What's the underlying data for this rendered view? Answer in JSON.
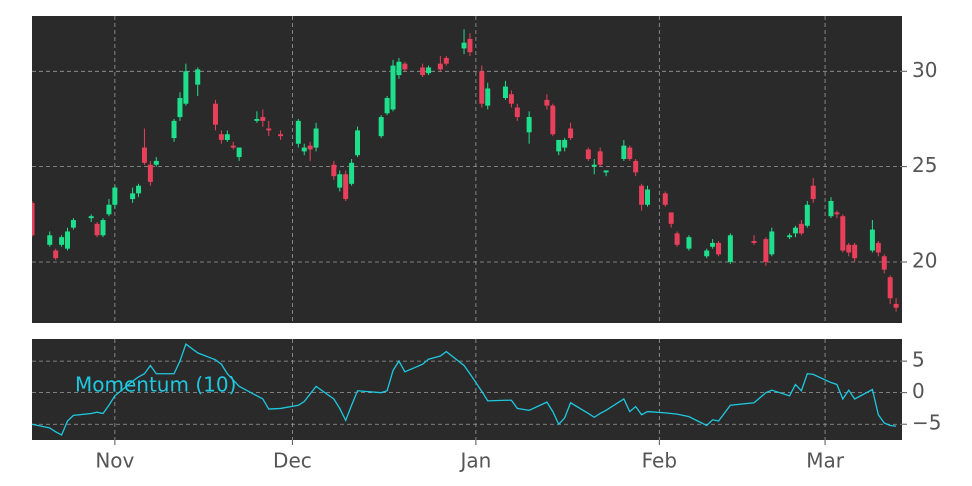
{
  "chart_data": [
    {
      "type": "candlestick",
      "x": [
        0,
        3,
        4,
        5,
        6,
        7,
        10,
        11,
        12,
        13,
        14,
        17,
        18,
        19,
        20,
        21,
        24,
        25,
        26,
        28,
        31,
        32,
        33,
        34,
        35,
        38,
        39,
        40,
        42,
        45,
        46,
        47,
        48,
        51,
        52,
        53,
        54,
        55,
        59,
        60,
        61,
        62,
        63,
        66,
        67,
        69,
        70,
        73,
        74,
        76,
        77,
        80,
        81,
        82,
        84,
        87,
        88,
        89,
        90,
        91,
        94,
        95,
        96,
        97,
        100,
        101,
        102,
        103,
        104,
        107,
        108,
        109,
        111,
        114,
        115,
        116,
        118,
        122,
        124,
        125,
        128,
        129,
        130,
        131,
        132,
        135,
        136,
        137,
        138,
        139,
        142,
        143,
        144,
        145,
        146
      ],
      "open": [
        23.1,
        20.9,
        20.6,
        20.9,
        20.7,
        21.8,
        22.3,
        22.0,
        21.4,
        22.5,
        23.0,
        23.3,
        23.6,
        26.0,
        25.1,
        25.1,
        26.5,
        27.6,
        28.3,
        29.3,
        28.3,
        26.7,
        26.4,
        26.1,
        25.5,
        27.4,
        27.6,
        27.0,
        26.7,
        26.2,
        25.8,
        26.1,
        26.0,
        25.1,
        23.9,
        24.6,
        24.1,
        25.6,
        26.6,
        27.8,
        28.0,
        29.8,
        30.4,
        30.2,
        29.9,
        30.4,
        30.7,
        31.2,
        31.7,
        30.0,
        28.2,
        28.6,
        28.8,
        28.1,
        26.8,
        28.5,
        28.2,
        25.8,
        26.0,
        27.0,
        25.9,
        25.0,
        25.8,
        24.7,
        25.4,
        26.0,
        25.3,
        24.0,
        23.0,
        23.6,
        22.6,
        21.5,
        20.7,
        20.3,
        20.8,
        21.0,
        20.0,
        21.1,
        21.2,
        20.4,
        21.3,
        21.5,
        22.0,
        21.9,
        24.0,
        22.4,
        22.6,
        22.4,
        20.9,
        20.9,
        20.6,
        21.0,
        20.3,
        19.2,
        17.8
      ],
      "high": [
        23.2,
        21.6,
        20.7,
        21.4,
        21.8,
        22.3,
        22.5,
        22.1,
        22.3,
        23.3,
        24.0,
        23.9,
        24.1,
        27.0,
        25.3,
        25.5,
        27.5,
        28.9,
        30.4,
        30.2,
        28.5,
        26.9,
        26.9,
        26.3,
        26.0,
        27.9,
        28.0,
        27.4,
        26.9,
        27.5,
        26.2,
        26.3,
        27.3,
        25.3,
        24.8,
        24.8,
        25.4,
        27.1,
        27.7,
        28.7,
        30.6,
        30.7,
        30.5,
        30.4,
        30.3,
        30.8,
        30.8,
        32.2,
        32.0,
        30.3,
        29.4,
        29.5,
        29.0,
        28.3,
        27.9,
        28.8,
        28.3,
        26.4,
        26.5,
        27.3,
        26.0,
        25.4,
        26.0,
        24.8,
        26.4,
        26.1,
        25.4,
        24.1,
        24.0,
        23.7,
        22.6,
        21.6,
        21.4,
        20.7,
        21.2,
        21.1,
        21.5,
        21.4,
        21.3,
        21.8,
        21.5,
        21.9,
        22.2,
        23.2,
        24.4,
        23.4,
        22.7,
        22.5,
        21.0,
        21.0,
        22.2,
        21.1,
        20.4,
        19.3,
        18.1
      ],
      "low": [
        21.3,
        20.8,
        20.1,
        20.8,
        20.6,
        21.7,
        22.1,
        21.3,
        21.3,
        22.4,
        22.8,
        23.1,
        23.4,
        25.1,
        24.0,
        25.0,
        26.3,
        27.4,
        28.2,
        28.7,
        26.9,
        26.2,
        26.3,
        25.9,
        25.3,
        27.3,
        27.1,
        26.6,
        26.4,
        26.0,
        25.6,
        25.3,
        25.8,
        24.3,
        23.7,
        23.2,
        24.0,
        25.5,
        26.5,
        27.7,
        27.9,
        29.6,
        30.0,
        29.7,
        29.8,
        30.0,
        30.3,
        30.9,
        30.8,
        28.1,
        28.0,
        28.5,
        28.1,
        27.4,
        26.2,
        28.0,
        26.6,
        25.6,
        25.8,
        26.4,
        25.3,
        24.6,
        25.0,
        24.5,
        25.3,
        25.3,
        24.5,
        22.7,
        22.9,
        22.9,
        21.8,
        20.8,
        20.6,
        20.2,
        20.7,
        20.3,
        19.9,
        20.9,
        19.8,
        20.3,
        21.2,
        21.3,
        21.4,
        21.8,
        23.1,
        22.3,
        22.3,
        20.5,
        20.3,
        20.0,
        20.5,
        20.3,
        19.4,
        17.8,
        17.4
      ],
      "close": [
        21.4,
        21.4,
        20.2,
        21.3,
        21.6,
        22.2,
        22.4,
        21.4,
        22.2,
        23.0,
        23.9,
        23.6,
        24.0,
        25.2,
        24.2,
        25.3,
        27.4,
        28.6,
        30.0,
        30.1,
        27.2,
        26.4,
        26.7,
        26.0,
        26.0,
        27.5,
        27.4,
        26.9,
        26.6,
        27.4,
        26.0,
        25.9,
        27.0,
        24.5,
        24.6,
        23.3,
        25.2,
        26.9,
        27.6,
        28.6,
        30.3,
        30.5,
        30.1,
        29.8,
        30.2,
        30.1,
        30.4,
        31.5,
        31.0,
        28.3,
        29.1,
        29.2,
        28.3,
        27.6,
        27.6,
        28.2,
        26.7,
        26.4,
        26.4,
        26.5,
        25.4,
        25.1,
        25.1,
        24.8,
        26.1,
        25.4,
        24.7,
        23.0,
        23.8,
        23.0,
        22.0,
        20.9,
        21.3,
        20.6,
        21.0,
        20.4,
        21.4,
        21.0,
        20.0,
        21.6,
        21.4,
        21.8,
        21.5,
        23.0,
        23.3,
        23.2,
        22.5,
        20.6,
        20.5,
        20.2,
        21.7,
        20.5,
        19.6,
        18.1,
        17.6
      ],
      "up_color": "#1ee08c",
      "down_color": "#e8405a",
      "xlim": [
        0,
        147
      ],
      "ylim": [
        16.8,
        32.9
      ],
      "yticks": [
        20,
        25,
        30
      ],
      "grid": true
    },
    {
      "type": "line",
      "x": [
        0,
        3,
        4,
        5,
        6,
        7,
        10,
        11,
        12,
        13,
        14,
        17,
        18,
        19,
        20,
        21,
        24,
        25,
        26,
        28,
        31,
        32,
        33,
        34,
        35,
        38,
        39,
        40,
        42,
        45,
        46,
        47,
        48,
        51,
        52,
        53,
        54,
        55,
        59,
        60,
        61,
        62,
        63,
        66,
        67,
        69,
        70,
        73,
        74,
        76,
        77,
        80,
        81,
        82,
        84,
        87,
        88,
        89,
        90,
        91,
        94,
        95,
        96,
        97,
        100,
        101,
        102,
        103,
        104,
        107,
        108,
        109,
        111,
        114,
        115,
        116,
        118,
        122,
        124,
        125,
        128,
        129,
        130,
        131,
        132,
        135,
        136,
        137,
        138,
        139,
        142,
        143,
        144,
        145,
        146
      ],
      "series": [
        {
          "name": "Momentum (10)",
          "color": "#1ec8e0",
          "values": [
            -5.0,
            -5.6,
            -6.2,
            -6.7,
            -4.5,
            -3.6,
            -3.3,
            -3.1,
            -3.3,
            -2.0,
            -0.5,
            1.8,
            2.5,
            3.0,
            4.3,
            3.0,
            3.0,
            5.0,
            7.7,
            6.3,
            5.2,
            4.5,
            3.0,
            2.0,
            1.0,
            -0.5,
            -1.0,
            -2.6,
            -2.5,
            -2.0,
            -1.4,
            -0.2,
            1.0,
            -1.0,
            -2.5,
            -4.4,
            -2.0,
            0.3,
            0.0,
            0.3,
            3.5,
            5.0,
            3.3,
            4.5,
            5.3,
            5.8,
            6.5,
            4.3,
            3.0,
            0.2,
            -1.3,
            -1.2,
            -1.2,
            -2.5,
            -2.8,
            -1.5,
            -3.0,
            -5.0,
            -4.0,
            -1.6,
            -3.3,
            -3.9,
            -3.3,
            -2.8,
            -1.0,
            -3.0,
            -2.2,
            -3.5,
            -3.0,
            -3.2,
            -3.3,
            -3.4,
            -3.8,
            -5.2,
            -4.3,
            -4.5,
            -2.0,
            -1.6,
            0.0,
            0.4,
            -0.5,
            1.3,
            0.3,
            3.0,
            2.9,
            1.6,
            1.3,
            -1.0,
            0.4,
            -1.0,
            0.5,
            -3.5,
            -4.8,
            -5.2,
            -5.3
          ]
        }
      ],
      "xlim": [
        0,
        147
      ],
      "ylim": [
        -7.5,
        8.5
      ],
      "yticks": [
        5,
        0,
        {
          "value": -5,
          "label": "−5"
        }
      ],
      "xticks": [
        {
          "value": 14,
          "label": "Nov"
        },
        {
          "value": 44,
          "label": "Dec"
        },
        {
          "value": 75,
          "label": "Jan"
        },
        {
          "value": 106,
          "label": "Feb"
        },
        {
          "value": 134,
          "label": "Mar"
        }
      ],
      "grid": true
    }
  ]
}
